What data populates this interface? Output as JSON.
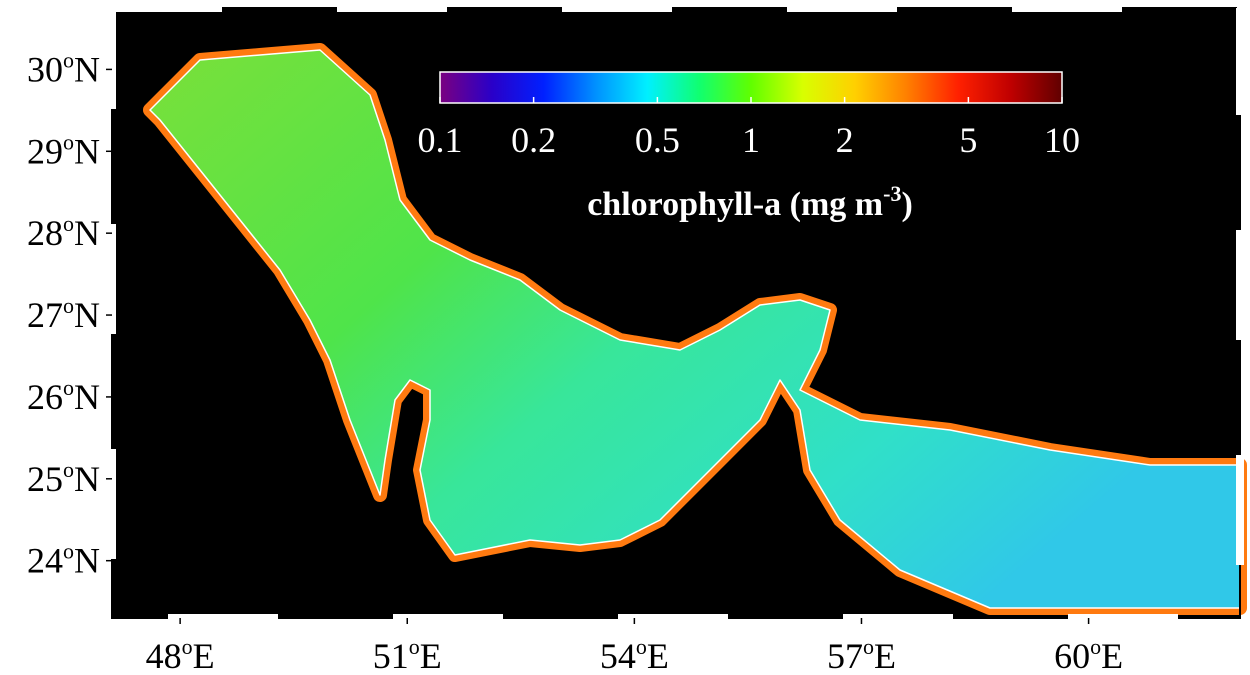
{
  "map": {
    "lon_range": [
      47.1,
      62.0
    ],
    "lat_range": [
      23.3,
      30.75
    ],
    "lat_ticks": [
      {
        "value": 30,
        "unit": "o",
        "hemisphere": "N"
      },
      {
        "value": 29,
        "unit": "o",
        "hemisphere": "N"
      },
      {
        "value": 28,
        "unit": "o",
        "hemisphere": "N"
      },
      {
        "value": 27,
        "unit": "o",
        "hemisphere": "N"
      },
      {
        "value": 26,
        "unit": "o",
        "hemisphere": "N"
      },
      {
        "value": 25,
        "unit": "o",
        "hemisphere": "N"
      },
      {
        "value": 24,
        "unit": "o",
        "hemisphere": "N"
      }
    ],
    "lon_ticks": [
      {
        "value": 48,
        "unit": "o",
        "hemisphere": "E"
      },
      {
        "value": 51,
        "unit": "o",
        "hemisphere": "E"
      },
      {
        "value": 54,
        "unit": "o",
        "hemisphere": "E"
      },
      {
        "value": 57,
        "unit": "o",
        "hemisphere": "E"
      },
      {
        "value": 60,
        "unit": "o",
        "hemisphere": "E"
      }
    ],
    "colorbar": {
      "scale": "log",
      "range": [
        0.1,
        10
      ],
      "ticks": [
        0.1,
        0.2,
        0.5,
        1,
        2,
        5,
        10
      ],
      "colors": [
        "#7a0080",
        "#2a00c8",
        "#0020ff",
        "#0090ff",
        "#00f0ff",
        "#10ff70",
        "#60ff00",
        "#d8ff00",
        "#ffd000",
        "#ff8000",
        "#ff2000",
        "#c00000",
        "#600000"
      ],
      "label": "chlorophyll-a (mg m",
      "label_exponent": "-3",
      "label_end": ")"
    }
  }
}
